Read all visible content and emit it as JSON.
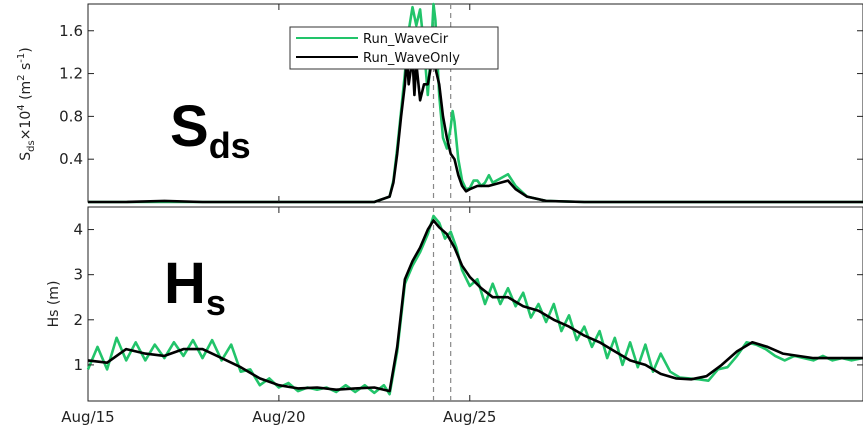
{
  "colors": {
    "wavecir": "#22c46a",
    "waveonly": "#000000",
    "vline": "#888888",
    "axis": "#222222"
  },
  "chart_data": [
    {
      "type": "line",
      "panel": "top",
      "big_label_main": "S",
      "big_label_sub": "ds",
      "ylabel_parts": [
        "S",
        "ds",
        "×10",
        "4",
        " (m",
        "2",
        " s",
        "-1",
        ")"
      ],
      "ylim": [
        0,
        1.85
      ],
      "ytick_values": [
        0.4,
        0.8,
        1.2,
        1.6
      ],
      "ytick_labels": [
        "0.4",
        "0.8",
        "1.2",
        "1.6"
      ],
      "xlim": [
        15,
        35.3
      ],
      "grid": false,
      "legend": {
        "position": "top-center",
        "entries": [
          "Run_WaveCir",
          "Run_WaveOnly"
        ]
      },
      "series": [
        {
          "name": "Run_WaveCir",
          "color": "#22c46a",
          "x": [
            15.0,
            16.0,
            17.0,
            18.0,
            19.0,
            20.0,
            21.0,
            22.0,
            22.5,
            22.9,
            23.0,
            23.1,
            23.2,
            23.3,
            23.4,
            23.5,
            23.6,
            23.7,
            23.8,
            23.9,
            24.0,
            24.05,
            24.1,
            24.2,
            24.3,
            24.4,
            24.5,
            24.55,
            24.6,
            24.7,
            24.8,
            24.9,
            25.0,
            25.1,
            25.2,
            25.3,
            25.4,
            25.5,
            25.6,
            25.8,
            26.0,
            26.2,
            26.5,
            27.0,
            28.0,
            30.0,
            32.0,
            34.0,
            35.3
          ],
          "y": [
            0.0,
            0.0,
            0.0,
            0.0,
            0.0,
            0.0,
            0.0,
            0.0,
            0.0,
            0.05,
            0.2,
            0.5,
            0.85,
            1.2,
            1.6,
            1.82,
            1.65,
            1.8,
            1.45,
            1.0,
            1.5,
            1.85,
            1.7,
            1.0,
            0.6,
            0.5,
            0.7,
            0.85,
            0.75,
            0.4,
            0.2,
            0.12,
            0.13,
            0.2,
            0.2,
            0.15,
            0.18,
            0.25,
            0.18,
            0.22,
            0.26,
            0.15,
            0.05,
            0.01,
            0.0,
            0.0,
            0.0,
            0.0,
            0.0
          ]
        },
        {
          "name": "Run_WaveOnly",
          "color": "#000000",
          "x": [
            15.0,
            16.0,
            17.0,
            18.0,
            19.0,
            20.0,
            21.0,
            22.0,
            22.5,
            22.9,
            23.0,
            23.1,
            23.2,
            23.3,
            23.35,
            23.4,
            23.5,
            23.55,
            23.6,
            23.7,
            23.8,
            23.9,
            24.0,
            24.1,
            24.2,
            24.3,
            24.4,
            24.5,
            24.6,
            24.7,
            24.8,
            24.9,
            25.0,
            25.2,
            25.5,
            25.8,
            26.0,
            26.2,
            26.5,
            27.0,
            28.0,
            30.0,
            32.0,
            34.0,
            35.3
          ],
          "y": [
            0.0,
            0.0,
            0.01,
            0.0,
            0.0,
            0.0,
            0.0,
            0.0,
            0.0,
            0.05,
            0.18,
            0.45,
            0.8,
            1.1,
            1.35,
            1.1,
            1.35,
            1.0,
            1.3,
            0.95,
            1.1,
            1.1,
            1.3,
            1.25,
            1.1,
            0.8,
            0.6,
            0.45,
            0.4,
            0.25,
            0.15,
            0.1,
            0.12,
            0.15,
            0.15,
            0.18,
            0.2,
            0.12,
            0.05,
            0.01,
            0.0,
            0.0,
            0.0,
            0.0,
            0.0
          ]
        }
      ]
    },
    {
      "type": "line",
      "panel": "bottom",
      "big_label_main": "H",
      "big_label_sub": "s",
      "ylabel": "Hs (m)",
      "ylim": [
        0.2,
        4.5
      ],
      "ytick_values": [
        1,
        2,
        3,
        4
      ],
      "ytick_labels": [
        "1",
        "2",
        "3",
        "4"
      ],
      "xlim": [
        15,
        35.3
      ],
      "x_tick_values": [
        15,
        20,
        25
      ],
      "x_tick_labels": [
        "Aug/15",
        "Aug/20",
        "Aug/25"
      ],
      "vertical_lines_x": [
        24.05,
        24.5
      ],
      "grid": false,
      "series": [
        {
          "name": "Run_WaveCir",
          "color": "#22c46a",
          "x": [
            15.0,
            15.25,
            15.5,
            15.75,
            16.0,
            16.25,
            16.5,
            16.75,
            17.0,
            17.25,
            17.5,
            17.75,
            18.0,
            18.25,
            18.5,
            18.75,
            19.0,
            19.25,
            19.5,
            19.75,
            20.0,
            20.25,
            20.5,
            20.75,
            21.0,
            21.25,
            21.5,
            21.75,
            22.0,
            22.25,
            22.5,
            22.75,
            22.9,
            23.1,
            23.3,
            23.5,
            23.7,
            23.9,
            24.05,
            24.2,
            24.35,
            24.5,
            24.65,
            24.8,
            25.0,
            25.2,
            25.4,
            25.6,
            25.8,
            26.0,
            26.2,
            26.4,
            26.6,
            26.8,
            27.0,
            27.2,
            27.4,
            27.6,
            27.8,
            28.0,
            28.2,
            28.4,
            28.6,
            28.8,
            29.0,
            29.2,
            29.4,
            29.6,
            29.8,
            30.0,
            30.25,
            30.5,
            30.75,
            31.0,
            31.25,
            31.5,
            31.75,
            32.0,
            32.25,
            32.5,
            32.75,
            33.0,
            33.25,
            33.5,
            33.75,
            34.0,
            34.25,
            34.5,
            34.75,
            35.0,
            35.3
          ],
          "y": [
            0.9,
            1.4,
            0.9,
            1.6,
            1.1,
            1.5,
            1.1,
            1.45,
            1.15,
            1.5,
            1.2,
            1.55,
            1.15,
            1.55,
            1.1,
            1.45,
            0.85,
            0.9,
            0.55,
            0.7,
            0.5,
            0.6,
            0.42,
            0.5,
            0.45,
            0.5,
            0.4,
            0.55,
            0.4,
            0.55,
            0.38,
            0.55,
            0.35,
            1.3,
            2.8,
            3.2,
            3.5,
            3.9,
            4.3,
            4.15,
            3.8,
            3.95,
            3.6,
            3.1,
            2.75,
            2.9,
            2.35,
            2.8,
            2.35,
            2.7,
            2.3,
            2.6,
            2.05,
            2.35,
            1.95,
            2.35,
            1.75,
            2.1,
            1.55,
            1.85,
            1.4,
            1.75,
            1.15,
            1.6,
            1.0,
            1.5,
            0.95,
            1.45,
            0.85,
            1.25,
            0.85,
            0.72,
            0.7,
            0.68,
            0.65,
            0.9,
            0.95,
            1.2,
            1.5,
            1.45,
            1.35,
            1.2,
            1.1,
            1.2,
            1.15,
            1.1,
            1.2,
            1.1,
            1.15,
            1.1,
            1.15
          ]
        },
        {
          "name": "Run_WaveOnly",
          "color": "#000000",
          "x": [
            15.0,
            15.5,
            16.0,
            16.5,
            17.0,
            17.5,
            18.0,
            18.5,
            19.0,
            19.5,
            20.0,
            20.5,
            21.0,
            21.5,
            22.0,
            22.5,
            22.9,
            23.1,
            23.3,
            23.5,
            23.7,
            23.9,
            24.05,
            24.2,
            24.4,
            24.6,
            24.8,
            25.0,
            25.3,
            25.6,
            26.0,
            26.4,
            26.8,
            27.2,
            27.6,
            28.0,
            28.4,
            28.8,
            29.2,
            29.6,
            30.0,
            30.4,
            30.8,
            31.2,
            31.6,
            32.0,
            32.4,
            32.8,
            33.2,
            33.6,
            34.0,
            34.4,
            34.8,
            35.3
          ],
          "y": [
            1.1,
            1.05,
            1.35,
            1.25,
            1.2,
            1.35,
            1.35,
            1.15,
            0.95,
            0.7,
            0.55,
            0.48,
            0.5,
            0.45,
            0.48,
            0.5,
            0.42,
            1.4,
            2.9,
            3.3,
            3.6,
            4.0,
            4.2,
            4.05,
            3.9,
            3.6,
            3.2,
            2.95,
            2.7,
            2.5,
            2.5,
            2.3,
            2.2,
            2.0,
            1.85,
            1.65,
            1.5,
            1.3,
            1.1,
            1.0,
            0.8,
            0.7,
            0.68,
            0.75,
            1.0,
            1.3,
            1.5,
            1.4,
            1.25,
            1.2,
            1.15,
            1.15,
            1.15,
            1.15
          ]
        }
      ]
    }
  ]
}
